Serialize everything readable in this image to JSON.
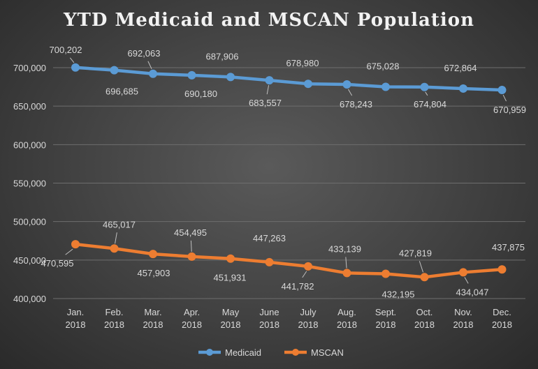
{
  "chart_data": {
    "type": "line",
    "title": "YTD Medicaid and MSCAN Population",
    "categories": [
      [
        "Jan.",
        "2018"
      ],
      [
        "Feb.",
        "2018"
      ],
      [
        "Mar.",
        "2018"
      ],
      [
        "Apr.",
        "2018"
      ],
      [
        "May",
        "2018"
      ],
      [
        "June",
        "2018"
      ],
      [
        "July",
        "2018"
      ],
      [
        "Aug.",
        "2018"
      ],
      [
        "Sept.",
        "2018"
      ],
      [
        "Oct.",
        "2018"
      ],
      [
        "Nov.",
        "2018"
      ],
      [
        "Dec.",
        "2018"
      ]
    ],
    "ylim": [
      400000,
      700000
    ],
    "yticks": [
      400000,
      450000,
      500000,
      550000,
      600000,
      650000,
      700000
    ],
    "ytick_labels": [
      "400,000",
      "450,000",
      "500,000",
      "550,000",
      "600,000",
      "650,000",
      "700,000"
    ],
    "grid": true,
    "legend": "bottom",
    "series": [
      {
        "name": "Medicaid",
        "color": "#5b9bd5",
        "values": [
          700202,
          696685,
          692063,
          690180,
          687906,
          683557,
          678980,
          678243,
          675028,
          674804,
          672864,
          670959
        ],
        "labels": [
          "700,202",
          "696,685",
          "692,063",
          "690,180",
          "687,906",
          "683,557",
          "678,980",
          "678,243",
          "675,028",
          "674,804",
          "672,864",
          "670,959"
        ]
      },
      {
        "name": "MSCAN",
        "color": "#ed7d31",
        "values": [
          470595,
          465017,
          457903,
          454495,
          451931,
          447263,
          441782,
          433139,
          432195,
          427819,
          434047,
          437875
        ],
        "labels": [
          "470,595",
          "465,017",
          "457,903",
          "454,495",
          "451,931",
          "447,263",
          "441,782",
          "433,139",
          "432,195",
          "427,819",
          "434,047",
          "437,875"
        ]
      }
    ]
  }
}
